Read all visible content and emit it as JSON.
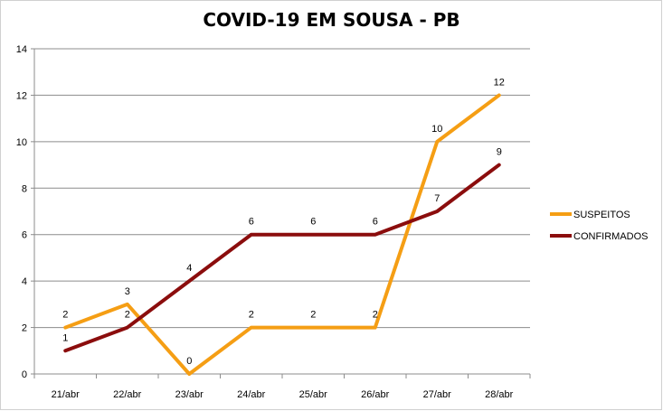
{
  "chart_data": {
    "type": "line",
    "title": "COVID-19 EM SOUSA - PB",
    "xlabel": "",
    "ylabel": "",
    "categories": [
      "21/abr",
      "22/abr",
      "23/abr",
      "24/abr",
      "25/abr",
      "26/abr",
      "27/abr",
      "28/abr"
    ],
    "ylim": [
      0,
      14
    ],
    "yticks": [
      0,
      2,
      4,
      6,
      8,
      10,
      12,
      14
    ],
    "grid": true,
    "legend_position": "right",
    "series": [
      {
        "name": "SUSPEITOS",
        "color": "#f59e14",
        "values": [
          2,
          3,
          0,
          2,
          2,
          2,
          10,
          12
        ]
      },
      {
        "name": "CONFIRMADOS",
        "color": "#8b0d0d",
        "values": [
          1,
          2,
          4,
          6,
          6,
          6,
          7,
          9
        ]
      }
    ]
  }
}
